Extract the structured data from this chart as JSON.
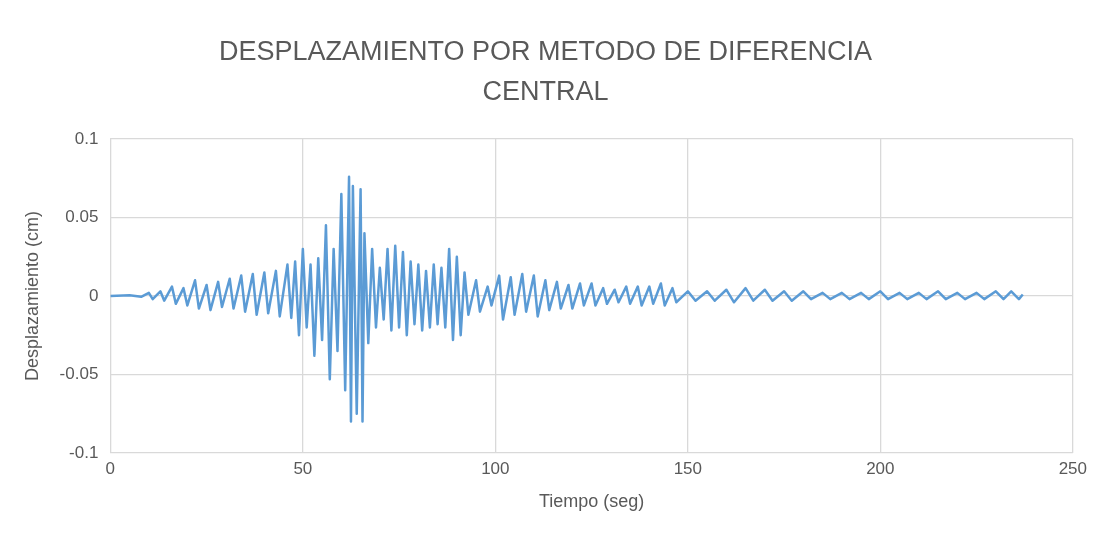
{
  "chart_data": {
    "type": "line",
    "title": "DESPLAZAMIENTO POR METODO DE DIFERENCIA CENTRAL",
    "xlabel": "Tiempo (seg)",
    "ylabel": "Desplazamiento (cm)",
    "xlim": [
      0,
      250
    ],
    "xticks": [
      0,
      50,
      100,
      150,
      200,
      250
    ],
    "ylim": [
      -0.1,
      0.1
    ],
    "yticks": [
      -0.1,
      -0.05,
      0,
      0.05,
      0.1
    ],
    "grid": true,
    "legend": false,
    "marker": "none",
    "line_style": "solid",
    "series": [
      {
        "color": "#5b9bd5",
        "x": [
          0,
          5,
          8,
          10,
          11,
          13,
          14,
          16,
          17,
          19,
          20,
          22,
          23,
          25,
          26,
          28,
          29,
          31,
          32,
          34,
          35,
          37,
          38,
          40,
          41,
          43,
          44,
          46,
          47,
          48,
          49,
          50,
          51,
          52,
          53,
          54,
          55,
          56,
          57,
          58,
          59,
          60,
          61,
          62,
          62.5,
          63,
          64,
          65,
          65.5,
          66,
          67,
          68,
          69,
          70,
          71,
          72,
          73,
          74,
          75,
          76,
          77,
          78,
          79,
          80,
          81,
          82,
          83,
          84,
          85,
          86,
          87,
          88,
          89,
          90,
          91,
          92,
          93,
          95,
          96,
          98,
          99,
          101,
          102,
          104,
          105,
          107,
          108,
          110,
          111,
          113,
          114,
          116,
          117,
          119,
          120,
          122,
          123,
          125,
          126,
          128,
          129,
          131,
          132,
          134,
          135,
          137,
          138,
          140,
          141,
          143,
          144,
          146,
          147,
          150,
          152,
          155,
          157,
          160,
          162,
          165,
          167,
          170,
          172,
          175,
          177,
          180,
          182,
          185,
          187,
          190,
          192,
          195,
          197,
          200,
          202,
          205,
          207,
          210,
          212,
          215,
          217,
          220,
          222,
          225,
          227,
          230,
          232,
          234,
          236,
          237
        ],
        "values": [
          0,
          0.0005,
          -0.0005,
          0.002,
          -0.002,
          0.003,
          -0.003,
          0.006,
          -0.005,
          0.005,
          -0.006,
          0.01,
          -0.008,
          0.007,
          -0.009,
          0.009,
          -0.007,
          0.011,
          -0.008,
          0.013,
          -0.01,
          0.014,
          -0.012,
          0.015,
          -0.011,
          0.016,
          -0.013,
          0.02,
          -0.014,
          0.022,
          -0.025,
          0.03,
          -0.02,
          0.02,
          -0.038,
          0.024,
          -0.028,
          0.045,
          -0.053,
          0.03,
          -0.035,
          0.065,
          -0.06,
          0.076,
          -0.08,
          0.07,
          -0.075,
          0.068,
          -0.08,
          0.04,
          -0.03,
          0.03,
          -0.02,
          0.018,
          -0.015,
          0.03,
          -0.022,
          0.032,
          -0.02,
          0.028,
          -0.025,
          0.022,
          -0.018,
          0.02,
          -0.022,
          0.016,
          -0.02,
          0.02,
          -0.018,
          0.018,
          -0.02,
          0.03,
          -0.028,
          0.025,
          -0.025,
          0.015,
          -0.012,
          0.01,
          -0.01,
          0.006,
          -0.006,
          0.013,
          -0.015,
          0.012,
          -0.012,
          0.014,
          -0.01,
          0.013,
          -0.013,
          0.01,
          -0.009,
          0.009,
          -0.008,
          0.007,
          -0.008,
          0.008,
          -0.006,
          0.008,
          -0.006,
          0.005,
          -0.005,
          0.004,
          -0.004,
          0.006,
          -0.005,
          0.006,
          -0.006,
          0.006,
          -0.005,
          0.008,
          -0.006,
          0.005,
          -0.004,
          0.003,
          -0.003,
          0.003,
          -0.003,
          0.004,
          -0.004,
          0.005,
          -0.003,
          0.004,
          -0.003,
          0.003,
          -0.003,
          0.003,
          -0.002,
          0.002,
          -0.002,
          0.002,
          -0.002,
          0.002,
          -0.002,
          0.003,
          -0.002,
          0.002,
          -0.002,
          0.002,
          -0.002,
          0.003,
          -0.002,
          0.002,
          -0.002,
          0.002,
          -0.002,
          0.003,
          -0.002,
          0.003,
          -0.002,
          0.001
        ]
      }
    ]
  }
}
